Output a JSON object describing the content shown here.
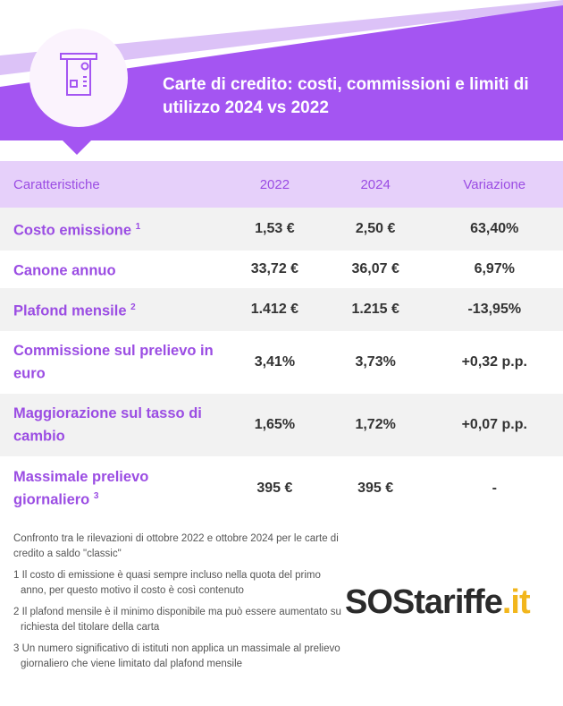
{
  "title": "Carte di credito: costi, commissioni e limiti di utilizzo 2024 vs 2022",
  "colors": {
    "purple": "#a455f2",
    "light_purple": "#e6d0fa",
    "label": "#9b4de3",
    "logo_yellow": "#f2b61c"
  },
  "icon": "atm-card-icon",
  "table": {
    "headers": [
      "Caratteristiche",
      "2022",
      "2024",
      "Variazione"
    ],
    "rows": [
      {
        "label": "Costo emissione",
        "note": "1",
        "v2022": "1,53 €",
        "v2024": "2,50 €",
        "var": "63,40%"
      },
      {
        "label": "Canone annuo",
        "note": "",
        "v2022": "33,72 €",
        "v2024": "36,07 €",
        "var": "6,97%"
      },
      {
        "label": "Plafond mensile",
        "note": "2",
        "v2022": "1.412 €",
        "v2024": "1.215 €",
        "var": "-13,95%"
      },
      {
        "label": "Commissione sul prelievo in euro",
        "note": "",
        "v2022": "3,41%",
        "v2024": "3,73%",
        "var": "+0,32 p.p."
      },
      {
        "label": "Maggiorazione sul tasso di cambio",
        "note": "",
        "v2022": "1,65%",
        "v2024": "1,72%",
        "var": "+0,07 p.p."
      },
      {
        "label": "Massimale prelievo giornaliero",
        "note": "3",
        "v2022": "395 €",
        "v2024": "395 €",
        "var": "-"
      }
    ]
  },
  "notes": {
    "intro": "Confronto tra le rilevazioni di ottobre 2022 e ottobre 2024 per le carte di credito a saldo \"classic\"",
    "footnotes": [
      "1 Il costo di emissione è quasi sempre incluso nella quota del primo anno, per questo motivo il costo è così contenuto",
      "2 Il plafond mensile è il minimo disponibile ma può essere aumentato su richiesta del titolare della carta",
      "3 Un numero significativo di istituti non applica un massimale al prelievo giornaliero che viene limitato dal plafond mensile"
    ]
  },
  "logo": {
    "main": "SOStariffe",
    "suffix": ".it"
  }
}
